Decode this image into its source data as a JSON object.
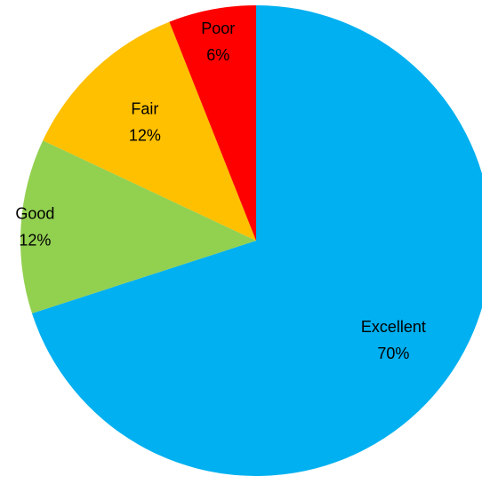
{
  "chart_data": {
    "type": "pie",
    "title": "",
    "slices": [
      {
        "label": "Excellent",
        "value": 70,
        "value_label": "70%",
        "color": "#00B0F0"
      },
      {
        "label": "Good",
        "value": 12,
        "value_label": "12%",
        "color": "#92D050"
      },
      {
        "label": "Fair",
        "value": 12,
        "value_label": "12%",
        "color": "#FFC000"
      },
      {
        "label": "Poor",
        "value": 6,
        "value_label": "6%",
        "color": "#FF0000"
      }
    ],
    "start": "top",
    "direction": "clockwise",
    "legend": "none"
  }
}
